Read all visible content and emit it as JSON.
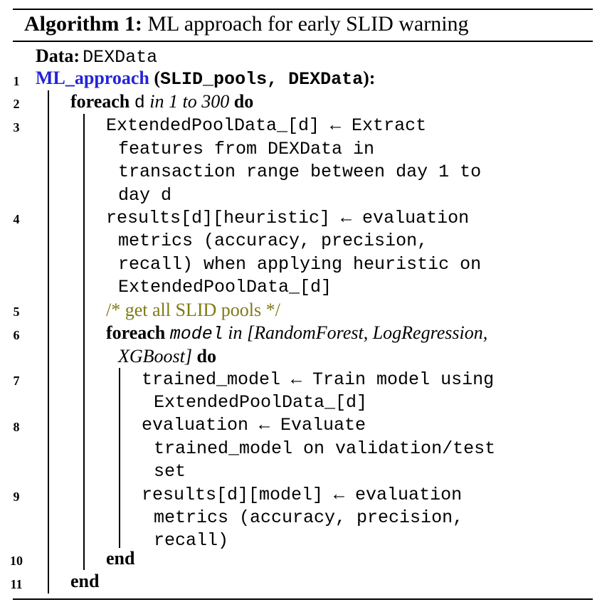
{
  "algorithm": {
    "label": "Algorithm 1:",
    "title": "ML approach for early SLID warning"
  },
  "data_line": {
    "keyword": "Data:",
    "value": "DEXData"
  },
  "procedure": {
    "name": "ML_approach",
    "open": "(",
    "arg1": "SLID_pools",
    "sep": ", ",
    "arg2": "DEXData",
    "close": "):"
  },
  "line_numbers": [
    "1",
    "2",
    "3",
    "4",
    "5",
    "6",
    "7",
    "8",
    "9",
    "10",
    "11"
  ],
  "loop1": {
    "kw": "foreach",
    "var": "d",
    "range": "in 1 to 300",
    "do": "do"
  },
  "step3": [
    "ExtendedPoolData_[d] ← Extract",
    "features from DEXData in",
    "transaction range between day 1 to",
    "day d"
  ],
  "step4": [
    "results[d][heuristic] ← evaluation",
    "metrics (accuracy, precision,",
    "recall) when applying heuristic on",
    "ExtendedPoolData_[d]"
  ],
  "comment": "/* get all SLID pools */",
  "loop2": {
    "kw": "foreach",
    "var": "model",
    "list_part1": "in [RandomForest, LogRegression,",
    "list_part2": "XGBoost]",
    "do": "do"
  },
  "step7": [
    "trained_model ← Train model using",
    "ExtendedPoolData_[d]"
  ],
  "step8": [
    "evaluation ← Evaluate",
    "trained_model on validation/test",
    "set"
  ],
  "step9": [
    "results[d][model] ← evaluation",
    "metrics (accuracy, precision,",
    "recall)"
  ],
  "end_inner": "end",
  "end_outer": "end",
  "colors": {
    "procedure": "#2424d6",
    "comment": "#7d7a14",
    "text": "#000000"
  }
}
